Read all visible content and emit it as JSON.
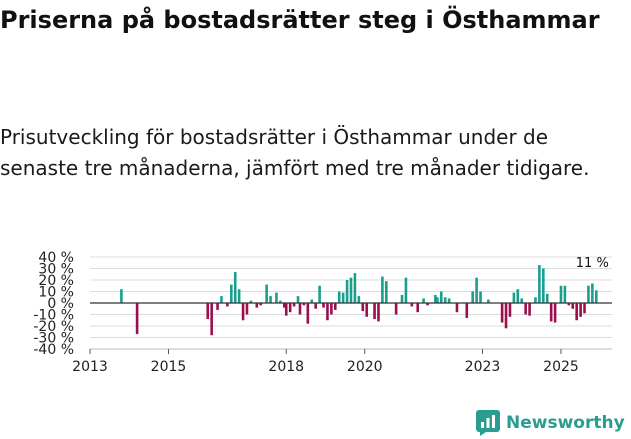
{
  "title": "Priserna på bostadsrätter steg i Östhammar",
  "subtitle": "Prisutveckling för bostadsrätter i Östhammar under de senaste tre månaderna, jämfört med tre månader tidigare.",
  "brand": "Newsworthy",
  "colors": {
    "positive": "#1a9e8f",
    "negative": "#9b0f4f",
    "brand": "#2a9d8f"
  },
  "chart_data": {
    "type": "bar",
    "title": "",
    "xlabel": "",
    "ylabel": "",
    "ylim": [
      -40,
      40
    ],
    "xlim": [
      2013.0,
      2026.3
    ],
    "y_ticks": [
      40,
      30,
      20,
      10,
      0,
      -10,
      -20,
      -30,
      -40
    ],
    "y_tick_labels": [
      "40 %",
      "30 %",
      "20 %",
      "10 %",
      "0 %",
      "-10 %",
      "-20 %",
      "-30 %",
      "-40 %"
    ],
    "x_ticks": [
      2013,
      2015,
      2018,
      2020,
      2023,
      2025
    ],
    "x_tick_labels": [
      "2013",
      "2015",
      "2018",
      "2020",
      "2023",
      "2025"
    ],
    "annotation": "11 %",
    "annotation_x": 2025.9,
    "series": [
      {
        "name": "Prisutveckling",
        "points": [
          [
            2013.8,
            12
          ],
          [
            2014.2,
            -27
          ],
          [
            2016.0,
            -14
          ],
          [
            2016.1,
            -28
          ],
          [
            2016.25,
            -6
          ],
          [
            2016.35,
            6
          ],
          [
            2016.5,
            -3
          ],
          [
            2016.6,
            16
          ],
          [
            2016.7,
            27
          ],
          [
            2016.8,
            12
          ],
          [
            2016.9,
            -15
          ],
          [
            2017.0,
            -10
          ],
          [
            2017.1,
            2
          ],
          [
            2017.25,
            -4
          ],
          [
            2017.35,
            -2
          ],
          [
            2017.5,
            16
          ],
          [
            2017.6,
            6
          ],
          [
            2017.75,
            9
          ],
          [
            2017.85,
            2
          ],
          [
            2017.95,
            -4
          ],
          [
            2018.0,
            -11
          ],
          [
            2018.1,
            -8
          ],
          [
            2018.2,
            -3
          ],
          [
            2018.3,
            6
          ],
          [
            2018.35,
            -10
          ],
          [
            2018.45,
            -2
          ],
          [
            2018.55,
            -18
          ],
          [
            2018.65,
            3
          ],
          [
            2018.75,
            -5
          ],
          [
            2018.85,
            15
          ],
          [
            2018.95,
            -4
          ],
          [
            2019.05,
            -15
          ],
          [
            2019.15,
            -10
          ],
          [
            2019.25,
            -6
          ],
          [
            2019.35,
            10
          ],
          [
            2019.45,
            9
          ],
          [
            2019.55,
            20
          ],
          [
            2019.65,
            22
          ],
          [
            2019.75,
            26
          ],
          [
            2019.85,
            6
          ],
          [
            2019.95,
            -7
          ],
          [
            2020.05,
            -12
          ],
          [
            2020.15,
            0
          ],
          [
            2020.25,
            -14
          ],
          [
            2020.35,
            -16
          ],
          [
            2020.45,
            23
          ],
          [
            2020.55,
            19
          ],
          [
            2020.65,
            0
          ],
          [
            2020.8,
            -10
          ],
          [
            2020.95,
            7
          ],
          [
            2021.05,
            22
          ],
          [
            2021.2,
            -3
          ],
          [
            2021.35,
            -8
          ],
          [
            2021.5,
            4
          ],
          [
            2021.6,
            -2
          ],
          [
            2021.8,
            7
          ],
          [
            2021.85,
            5
          ],
          [
            2021.95,
            10
          ],
          [
            2022.05,
            5
          ],
          [
            2022.15,
            4
          ],
          [
            2022.35,
            -8
          ],
          [
            2022.6,
            -13
          ],
          [
            2022.75,
            10
          ],
          [
            2022.85,
            22
          ],
          [
            2022.95,
            10
          ],
          [
            2023.15,
            3
          ],
          [
            2023.5,
            -17
          ],
          [
            2023.6,
            -22
          ],
          [
            2023.7,
            -12
          ],
          [
            2023.8,
            9
          ],
          [
            2023.9,
            12
          ],
          [
            2024.0,
            4
          ],
          [
            2024.1,
            -10
          ],
          [
            2024.2,
            -11
          ],
          [
            2024.35,
            5
          ],
          [
            2024.45,
            33
          ],
          [
            2024.55,
            30
          ],
          [
            2024.65,
            8
          ],
          [
            2024.75,
            -16
          ],
          [
            2024.85,
            -17
          ],
          [
            2025.0,
            15
          ],
          [
            2025.1,
            15
          ],
          [
            2025.2,
            -2
          ],
          [
            2025.3,
            -5
          ],
          [
            2025.4,
            -15
          ],
          [
            2025.5,
            -12
          ],
          [
            2025.6,
            -9
          ],
          [
            2025.7,
            15
          ],
          [
            2025.8,
            17
          ],
          [
            2025.9,
            11
          ]
        ]
      }
    ]
  }
}
